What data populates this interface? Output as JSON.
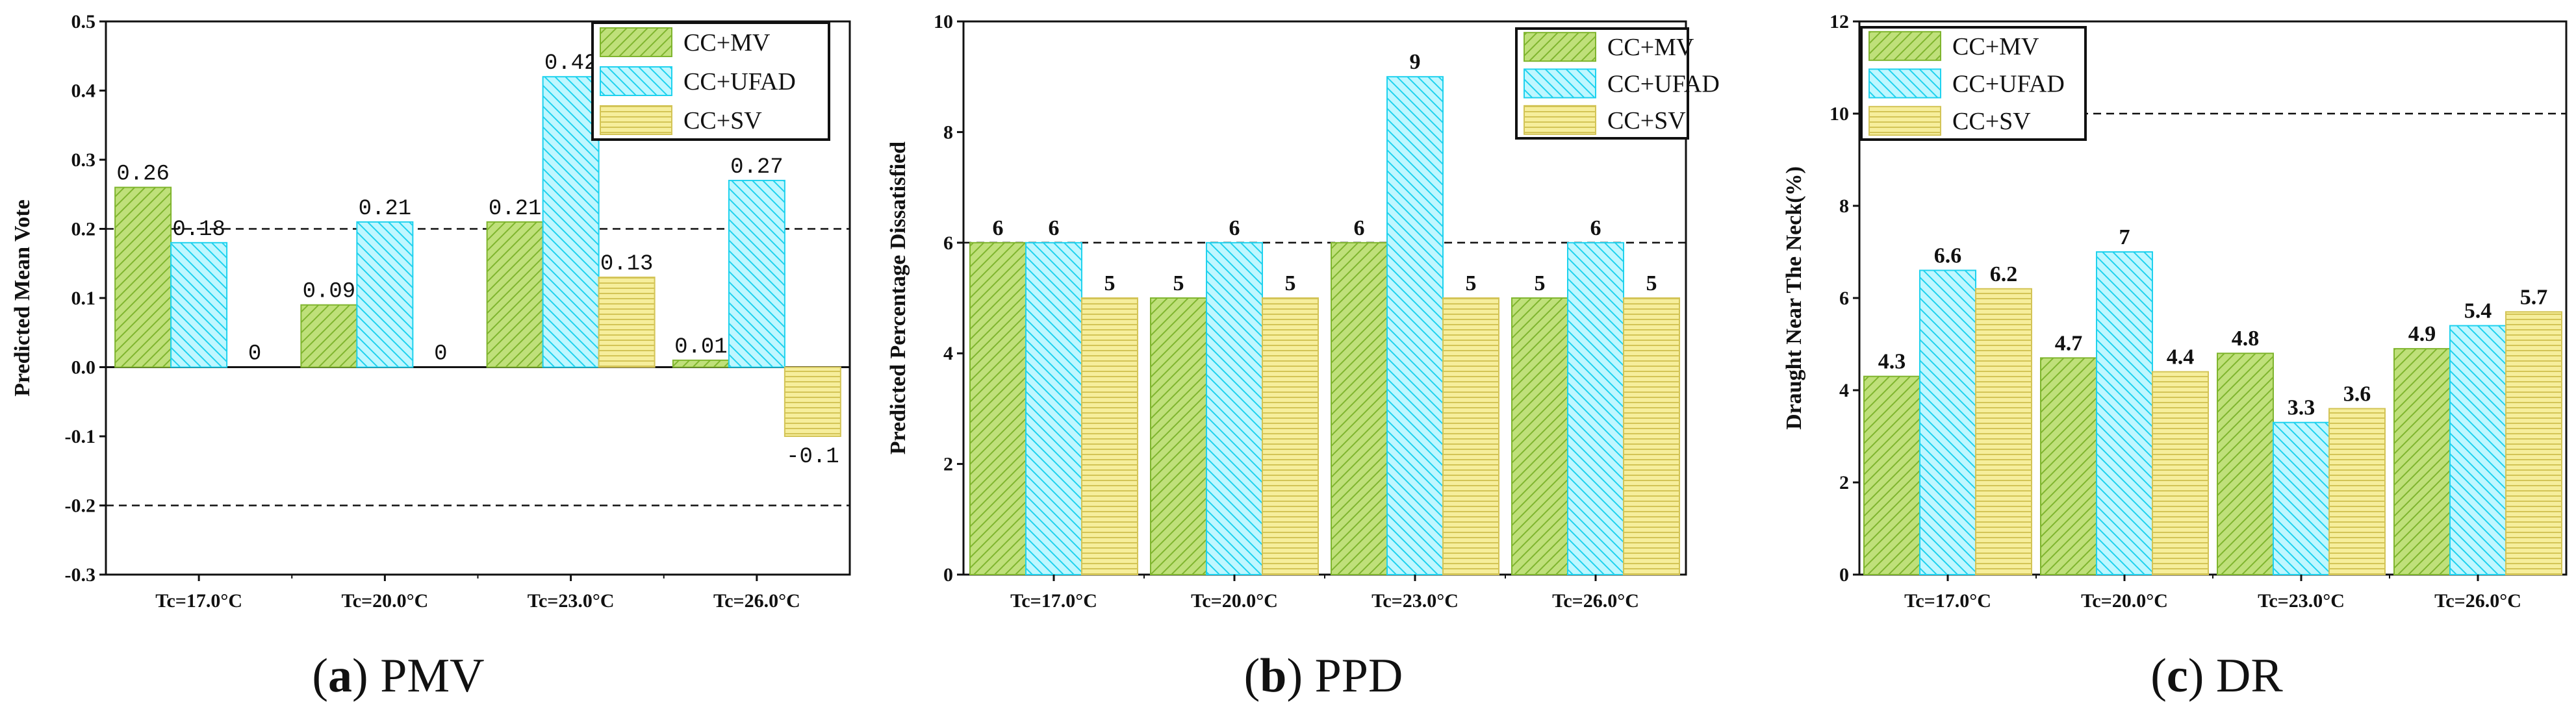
{
  "colors": {
    "mv": "#bfe07a",
    "mv_stroke": "#7fb52e",
    "ufad": "#bff7ff",
    "ufad_stroke": "#1fd2ee",
    "sv": "#f6ee9c",
    "sv_stroke": "#d3c456"
  },
  "chart_data": [
    {
      "type": "bar",
      "panel": "a",
      "caption_letter": "a",
      "caption_text": "PMV",
      "ylabel": "Predicted Mean Vote",
      "categories": [
        "Tc=17.0°C",
        "Tc=20.0°C",
        "Tc=23.0°C",
        "Tc=26.0°C"
      ],
      "series": [
        {
          "name": "CC+MV",
          "values": [
            0.26,
            0.09,
            0.21,
            0.01
          ],
          "labels": [
            "0.26",
            "0.09",
            "0.21",
            "0.01"
          ]
        },
        {
          "name": "CC+UFAD",
          "values": [
            0.18,
            0.21,
            0.42,
            0.27
          ],
          "labels": [
            "0.18",
            "0.21",
            "0.42",
            "0.27"
          ]
        },
        {
          "name": "CC+SV",
          "values": [
            0,
            0,
            0.13,
            -0.1
          ],
          "labels": [
            "0",
            "0",
            "0.13",
            "-0.1"
          ]
        }
      ],
      "ylim": [
        -0.3,
        0.5
      ],
      "yticks": [
        -0.3,
        -0.2,
        -0.1,
        0.0,
        0.1,
        0.2,
        0.3,
        0.4,
        0.5
      ],
      "ytick_labels": [
        "-0.3",
        "-0.2",
        "-0.1",
        "0.0",
        "0.1",
        "0.2",
        "0.3",
        "0.4",
        "0.5"
      ],
      "reference_lines": [
        0.2,
        -0.2,
        0.0
      ],
      "legend_position": "top-right",
      "label_style": "mono"
    },
    {
      "type": "bar",
      "panel": "b",
      "caption_letter": "b",
      "caption_text": "PPD",
      "ylabel": "Predicted Percentage Dissatisfied",
      "categories": [
        "Tc=17.0°C",
        "Tc=20.0°C",
        "Tc=23.0°C",
        "Tc=26.0°C"
      ],
      "series": [
        {
          "name": "CC+MV",
          "values": [
            6,
            5,
            6,
            5
          ],
          "labels": [
            "6",
            "5",
            "6",
            "5"
          ]
        },
        {
          "name": "CC+UFAD",
          "values": [
            6,
            6,
            9,
            6
          ],
          "labels": [
            "6",
            "6",
            "9",
            "6"
          ]
        },
        {
          "name": "CC+SV",
          "values": [
            5,
            5,
            5,
            5
          ],
          "labels": [
            "5",
            "5",
            "5",
            "5"
          ]
        }
      ],
      "ylim": [
        0,
        10
      ],
      "yticks": [
        0,
        2,
        4,
        6,
        8,
        10
      ],
      "ytick_labels": [
        "0",
        "2",
        "4",
        "6",
        "8",
        "10"
      ],
      "reference_lines": [
        6
      ],
      "legend_position": "top-right",
      "label_style": "bold"
    },
    {
      "type": "bar",
      "panel": "c",
      "caption_letter": "c",
      "caption_text": "DR",
      "ylabel": "Draught Near The Neck(%)",
      "categories": [
        "Tc=17.0°C",
        "Tc=20.0°C",
        "Tc=23.0°C",
        "Tc=26.0°C"
      ],
      "series": [
        {
          "name": "CC+MV",
          "values": [
            4.3,
            4.7,
            4.8,
            4.9
          ],
          "labels": [
            "4.3",
            "4.7",
            "4.8",
            "4.9"
          ]
        },
        {
          "name": "CC+UFAD",
          "values": [
            6.6,
            7,
            3.3,
            5.4
          ],
          "labels": [
            "6.6",
            "7",
            "3.3",
            "5.4"
          ]
        },
        {
          "name": "CC+SV",
          "values": [
            6.2,
            4.4,
            3.6,
            5.7
          ],
          "labels": [
            "6.2",
            "4.4",
            "3.6",
            "5.7"
          ]
        }
      ],
      "ylim": [
        0,
        12
      ],
      "yticks": [
        0,
        2,
        4,
        6,
        8,
        10,
        12
      ],
      "ytick_labels": [
        "0",
        "2",
        "4",
        "6",
        "8",
        "10",
        "12"
      ],
      "reference_lines": [
        10
      ],
      "legend_position": "top-left",
      "label_style": "bold"
    }
  ]
}
